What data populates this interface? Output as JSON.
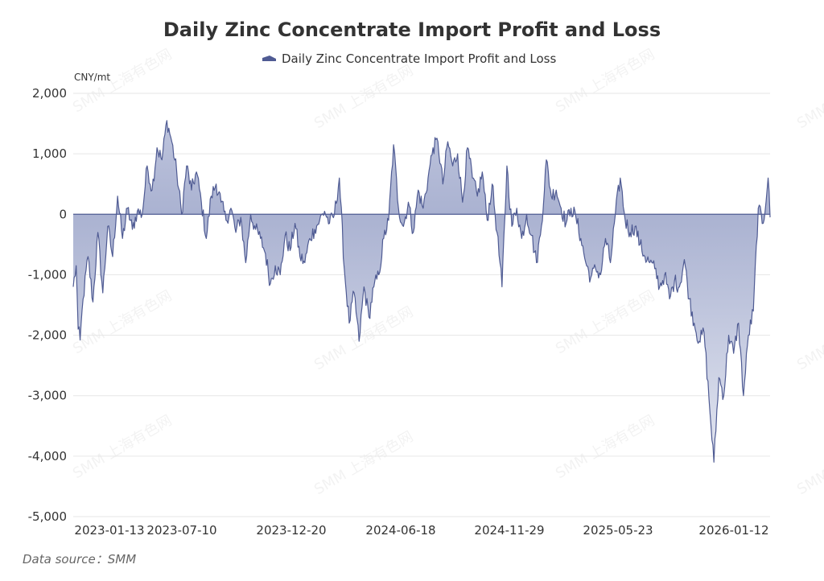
{
  "chart_data": {
    "type": "area",
    "title": "Daily Zinc Concentrate Import Profit and Loss",
    "legend": [
      "Daily Zinc Concentrate Import Profit and Loss"
    ],
    "legend_position": "top-center",
    "ylabel": "CNY/mt",
    "ylim": [
      -5000,
      2000
    ],
    "y_ticks": [
      "2,000",
      "1,000",
      "0",
      "-1,000",
      "-2,000",
      "-3,000",
      "-4,000",
      "-5,000"
    ],
    "x_ticks": [
      "2023-01-13",
      "2023-07-10",
      "2023-12-20",
      "2024-06-18",
      "2024-11-29",
      "2025-05-23",
      "2026-01-12"
    ],
    "grid": true,
    "series": [
      {
        "name": "Daily Zinc Concentrate Import Profit and Loss",
        "color": "#4f5b93",
        "fill_top": "#c3c9e0",
        "fill_zero": "#aab2d1",
        "fill_bottom": "#eef0f7",
        "keypoints": [
          {
            "i": 0,
            "v": -1200
          },
          {
            "i": 3,
            "v": -850
          },
          {
            "i": 5,
            "v": -1900
          },
          {
            "i": 7,
            "v": -2080
          },
          {
            "i": 10,
            "v": -1400
          },
          {
            "i": 15,
            "v": -700
          },
          {
            "i": 20,
            "v": -1450
          },
          {
            "i": 25,
            "v": -300
          },
          {
            "i": 30,
            "v": -1300
          },
          {
            "i": 35,
            "v": -200
          },
          {
            "i": 40,
            "v": -700
          },
          {
            "i": 45,
            "v": 300
          },
          {
            "i": 50,
            "v": -400
          },
          {
            "i": 55,
            "v": 100
          },
          {
            "i": 60,
            "v": -250
          },
          {
            "i": 65,
            "v": 50
          },
          {
            "i": 70,
            "v": 0
          },
          {
            "i": 75,
            "v": 800
          },
          {
            "i": 80,
            "v": 400
          },
          {
            "i": 85,
            "v": 1100
          },
          {
            "i": 90,
            "v": 900
          },
          {
            "i": 95,
            "v": 1550
          },
          {
            "i": 100,
            "v": 1200
          },
          {
            "i": 105,
            "v": 700
          },
          {
            "i": 110,
            "v": 0
          },
          {
            "i": 115,
            "v": 800
          },
          {
            "i": 120,
            "v": 400
          },
          {
            "i": 125,
            "v": 700
          },
          {
            "i": 130,
            "v": 200
          },
          {
            "i": 135,
            "v": -400
          },
          {
            "i": 140,
            "v": 300
          },
          {
            "i": 145,
            "v": 500
          },
          {
            "i": 150,
            "v": 200
          },
          {
            "i": 155,
            "v": -100
          },
          {
            "i": 160,
            "v": 100
          },
          {
            "i": 165,
            "v": -300
          },
          {
            "i": 170,
            "v": -50
          },
          {
            "i": 175,
            "v": -800
          },
          {
            "i": 180,
            "v": 0
          },
          {
            "i": 185,
            "v": -250
          },
          {
            "i": 190,
            "v": -400
          },
          {
            "i": 195,
            "v": -650
          },
          {
            "i": 200,
            "v": -1150
          },
          {
            "i": 205,
            "v": -850
          },
          {
            "i": 210,
            "v": -1000
          },
          {
            "i": 215,
            "v": -350
          },
          {
            "i": 220,
            "v": -600
          },
          {
            "i": 225,
            "v": -150
          },
          {
            "i": 230,
            "v": -700
          },
          {
            "i": 235,
            "v": -800
          },
          {
            "i": 240,
            "v": -400
          },
          {
            "i": 245,
            "v": -250
          },
          {
            "i": 250,
            "v": -100
          },
          {
            "i": 255,
            "v": 50
          },
          {
            "i": 260,
            "v": -150
          },
          {
            "i": 265,
            "v": 0
          },
          {
            "i": 270,
            "v": 600
          },
          {
            "i": 275,
            "v": -900
          },
          {
            "i": 280,
            "v": -1800
          },
          {
            "i": 285,
            "v": -1300
          },
          {
            "i": 290,
            "v": -2100
          },
          {
            "i": 295,
            "v": -1200
          },
          {
            "i": 300,
            "v": -1700
          },
          {
            "i": 305,
            "v": -1200
          },
          {
            "i": 310,
            "v": -1000
          },
          {
            "i": 315,
            "v": -400
          },
          {
            "i": 320,
            "v": -100
          },
          {
            "i": 325,
            "v": 1150
          },
          {
            "i": 330,
            "v": 100
          },
          {
            "i": 335,
            "v": -200
          },
          {
            "i": 340,
            "v": 200
          },
          {
            "i": 345,
            "v": -300
          },
          {
            "i": 350,
            "v": 400
          },
          {
            "i": 355,
            "v": 100
          },
          {
            "i": 360,
            "v": 600
          },
          {
            "i": 365,
            "v": 1100
          },
          {
            "i": 370,
            "v": 1200
          },
          {
            "i": 375,
            "v": 500
          },
          {
            "i": 380,
            "v": 1200
          },
          {
            "i": 385,
            "v": 800
          },
          {
            "i": 390,
            "v": 1000
          },
          {
            "i": 395,
            "v": 200
          },
          {
            "i": 400,
            "v": 1100
          },
          {
            "i": 405,
            "v": 600
          },
          {
            "i": 410,
            "v": 300
          },
          {
            "i": 415,
            "v": 700
          },
          {
            "i": 420,
            "v": -100
          },
          {
            "i": 425,
            "v": 500
          },
          {
            "i": 430,
            "v": -300
          },
          {
            "i": 435,
            "v": -1200
          },
          {
            "i": 440,
            "v": 800
          },
          {
            "i": 445,
            "v": -200
          },
          {
            "i": 450,
            "v": 100
          },
          {
            "i": 455,
            "v": -400
          },
          {
            "i": 460,
            "v": 0
          },
          {
            "i": 465,
            "v": -350
          },
          {
            "i": 470,
            "v": -800
          },
          {
            "i": 475,
            "v": -200
          },
          {
            "i": 480,
            "v": 900
          },
          {
            "i": 485,
            "v": 300
          },
          {
            "i": 490,
            "v": 400
          },
          {
            "i": 495,
            "v": 100
          },
          {
            "i": 500,
            "v": -150
          },
          {
            "i": 505,
            "v": 100
          },
          {
            "i": 510,
            "v": -50
          },
          {
            "i": 515,
            "v": -400
          },
          {
            "i": 520,
            "v": -800
          },
          {
            "i": 525,
            "v": -1050
          },
          {
            "i": 530,
            "v": -900
          },
          {
            "i": 535,
            "v": -1000
          },
          {
            "i": 540,
            "v": -400
          },
          {
            "i": 545,
            "v": -800
          },
          {
            "i": 550,
            "v": 0
          },
          {
            "i": 555,
            "v": 600
          },
          {
            "i": 560,
            "v": -100
          },
          {
            "i": 565,
            "v": -300
          },
          {
            "i": 570,
            "v": -200
          },
          {
            "i": 575,
            "v": -500
          },
          {
            "i": 580,
            "v": -700
          },
          {
            "i": 585,
            "v": -800
          },
          {
            "i": 590,
            "v": -900
          },
          {
            "i": 595,
            "v": -1200
          },
          {
            "i": 600,
            "v": -1000
          },
          {
            "i": 605,
            "v": -1400
          },
          {
            "i": 610,
            "v": -1100
          },
          {
            "i": 615,
            "v": -1200
          },
          {
            "i": 620,
            "v": -750
          },
          {
            "i": 625,
            "v": -1400
          },
          {
            "i": 630,
            "v": -1800
          },
          {
            "i": 635,
            "v": -2100
          },
          {
            "i": 640,
            "v": -1950
          },
          {
            "i": 645,
            "v": -3050
          },
          {
            "i": 650,
            "v": -4100
          },
          {
            "i": 655,
            "v": -2700
          },
          {
            "i": 660,
            "v": -3000
          },
          {
            "i": 665,
            "v": -2000
          },
          {
            "i": 670,
            "v": -2300
          },
          {
            "i": 675,
            "v": -1800
          },
          {
            "i": 680,
            "v": -3000
          },
          {
            "i": 685,
            "v": -2000
          },
          {
            "i": 690,
            "v": -1600
          },
          {
            "i": 695,
            "v": 100
          },
          {
            "i": 700,
            "v": -150
          },
          {
            "i": 705,
            "v": 600
          },
          {
            "i": 707,
            "v": -50
          }
        ]
      }
    ]
  },
  "watermark": "SMM 上海有色网",
  "source": "Data source：SMM"
}
